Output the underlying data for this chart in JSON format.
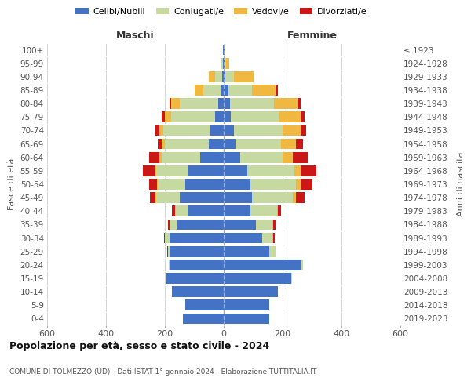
{
  "age_groups": [
    "100+",
    "95-99",
    "90-94",
    "85-89",
    "80-84",
    "75-79",
    "70-74",
    "65-69",
    "60-64",
    "55-59",
    "50-54",
    "45-49",
    "40-44",
    "35-39",
    "30-34",
    "25-29",
    "20-24",
    "15-19",
    "10-14",
    "5-9",
    "0-4"
  ],
  "birth_years": [
    "≤ 1923",
    "1924-1928",
    "1929-1933",
    "1934-1938",
    "1939-1943",
    "1944-1948",
    "1949-1953",
    "1954-1958",
    "1959-1963",
    "1964-1968",
    "1969-1973",
    "1974-1978",
    "1979-1983",
    "1984-1988",
    "1989-1993",
    "1994-1998",
    "1999-2003",
    "2004-2008",
    "2009-2013",
    "2014-2018",
    "2019-2023"
  ],
  "male": {
    "celibe": [
      2,
      3,
      5,
      10,
      20,
      30,
      45,
      50,
      80,
      120,
      130,
      150,
      120,
      160,
      185,
      185,
      185,
      195,
      175,
      130,
      140
    ],
    "coniugato": [
      2,
      4,
      25,
      60,
      130,
      150,
      160,
      150,
      130,
      110,
      95,
      80,
      45,
      25,
      15,
      5,
      3,
      1,
      0,
      0,
      0
    ],
    "vedovo": [
      0,
      2,
      20,
      30,
      30,
      20,
      15,
      10,
      8,
      5,
      3,
      2,
      0,
      0,
      0,
      0,
      0,
      0,
      0,
      0,
      0
    ],
    "divorziato": [
      0,
      0,
      0,
      0,
      5,
      10,
      15,
      15,
      35,
      40,
      25,
      20,
      10,
      5,
      3,
      2,
      0,
      0,
      0,
      0,
      0
    ]
  },
  "female": {
    "nubile": [
      2,
      3,
      5,
      15,
      20,
      25,
      35,
      40,
      55,
      80,
      90,
      95,
      90,
      110,
      130,
      155,
      265,
      230,
      185,
      155,
      155
    ],
    "coniugata": [
      2,
      5,
      30,
      80,
      150,
      165,
      165,
      155,
      145,
      160,
      155,
      140,
      90,
      55,
      35,
      20,
      5,
      2,
      0,
      0,
      0
    ],
    "vedova": [
      2,
      10,
      65,
      80,
      80,
      70,
      60,
      50,
      35,
      20,
      15,
      10,
      5,
      3,
      2,
      0,
      0,
      0,
      0,
      0,
      0
    ],
    "divorziata": [
      0,
      0,
      2,
      10,
      10,
      15,
      20,
      25,
      50,
      55,
      40,
      30,
      10,
      8,
      5,
      2,
      0,
      0,
      0,
      0,
      0
    ]
  },
  "colors": {
    "celibe": "#4472C4",
    "coniugato": "#C5D9A0",
    "vedovo": "#F0B840",
    "divorziato": "#CC1717"
  },
  "title": "Popolazione per età, sesso e stato civile - 2024",
  "subtitle": "COMUNE DI TOLMEZZO (UD) - Dati ISTAT 1° gennaio 2024 - Elaborazione TUTTITALIA.IT",
  "xlabel_left": "Maschi",
  "xlabel_right": "Femmine",
  "ylabel_left": "Fasce di età",
  "ylabel_right": "Anni di nascita",
  "xlim": 600,
  "background_color": "#ffffff"
}
